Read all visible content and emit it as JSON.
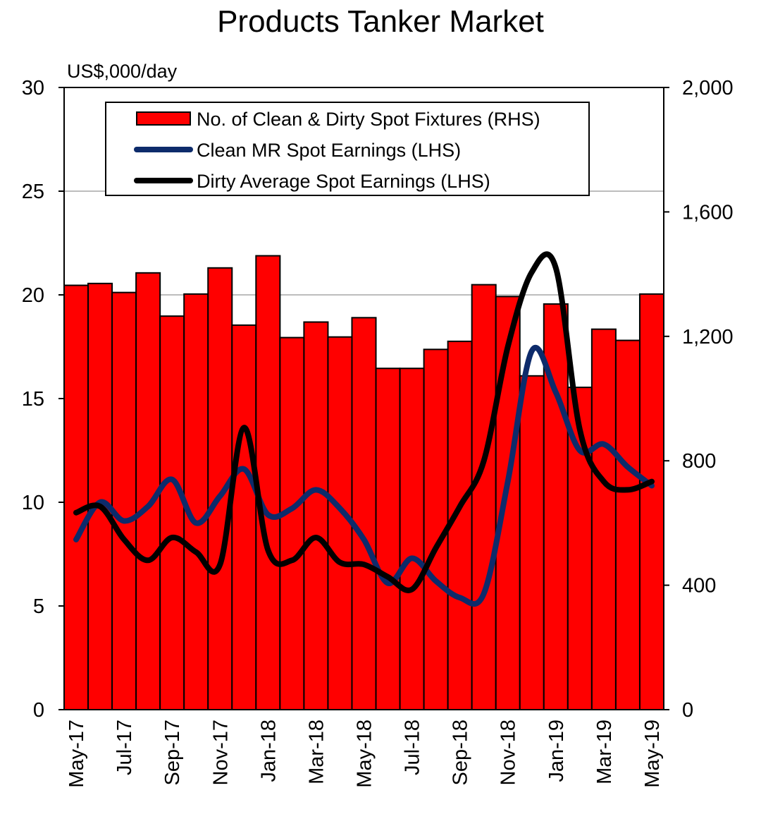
{
  "chart_data": {
    "type": "bar",
    "title": "Products Tanker Market",
    "y_left_unit_label": "US$,000/day",
    "ylim_left": [
      0,
      30
    ],
    "ylim_right": [
      0,
      2000
    ],
    "y_left_ticks": [
      "0",
      "5",
      "10",
      "15",
      "20",
      "25",
      "30"
    ],
    "y_right_ticks": [
      "0",
      "400",
      "800",
      "1,200",
      "1,600",
      "2,000"
    ],
    "grid": "horizontal major gridlines at 25 and 20",
    "legend_placement": "top-center",
    "categories": [
      "May-17",
      "Jun-17",
      "Jul-17",
      "Aug-17",
      "Sep-17",
      "Oct-17",
      "Nov-17",
      "Dec-17",
      "Jan-18",
      "Feb-18",
      "Mar-18",
      "Apr-18",
      "May-18",
      "Jun-18",
      "Jul-18",
      "Aug-18",
      "Sep-18",
      "Oct-18",
      "Nov-18",
      "Dec-18",
      "Jan-19",
      "Feb-19",
      "Mar-19",
      "Apr-19",
      "May-19"
    ],
    "x_tick_labels": [
      "May-17",
      "Jul-17",
      "Sep-17",
      "Nov-17",
      "Jan-18",
      "Mar-18",
      "May-18",
      "Jul-18",
      "Sep-18",
      "Nov-18",
      "Jan-19",
      "Mar-19",
      "May-19"
    ],
    "series": [
      {
        "name": "No. of Clean & Dirty Spot Fixtures (RHS)",
        "type": "bar",
        "axis": "right",
        "color": "#ff0000",
        "values": [
          1364,
          1370,
          1341,
          1404,
          1265,
          1336,
          1420,
          1236,
          1459,
          1196,
          1246,
          1198,
          1260,
          1097,
          1097,
          1158,
          1184,
          1366,
          1328,
          1073,
          1304,
          1036,
          1223,
          1187,
          1336
        ]
      },
      {
        "name": "Clean MR Spot Earnings (LHS)",
        "type": "line",
        "axis": "left",
        "color": "#0d2b6b",
        "values": [
          8.2,
          10.0,
          9.1,
          9.8,
          11.1,
          9.0,
          10.3,
          11.6,
          9.4,
          9.7,
          10.6,
          9.7,
          8.2,
          6.1,
          7.3,
          6.2,
          5.4,
          5.6,
          11.0,
          17.3,
          15.3,
          12.5,
          12.8,
          11.7,
          10.8
        ]
      },
      {
        "name": "Dirty Average Spot Earnings (LHS)",
        "type": "line",
        "axis": "left",
        "color": "#000000",
        "values": [
          9.5,
          9.8,
          8.2,
          7.2,
          8.3,
          7.6,
          7.0,
          13.6,
          7.7,
          7.2,
          8.3,
          7.1,
          7.0,
          6.4,
          5.8,
          7.8,
          9.8,
          12.0,
          17.5,
          21.1,
          21.3,
          13.5,
          11.0,
          10.6,
          11.0
        ]
      }
    ]
  }
}
